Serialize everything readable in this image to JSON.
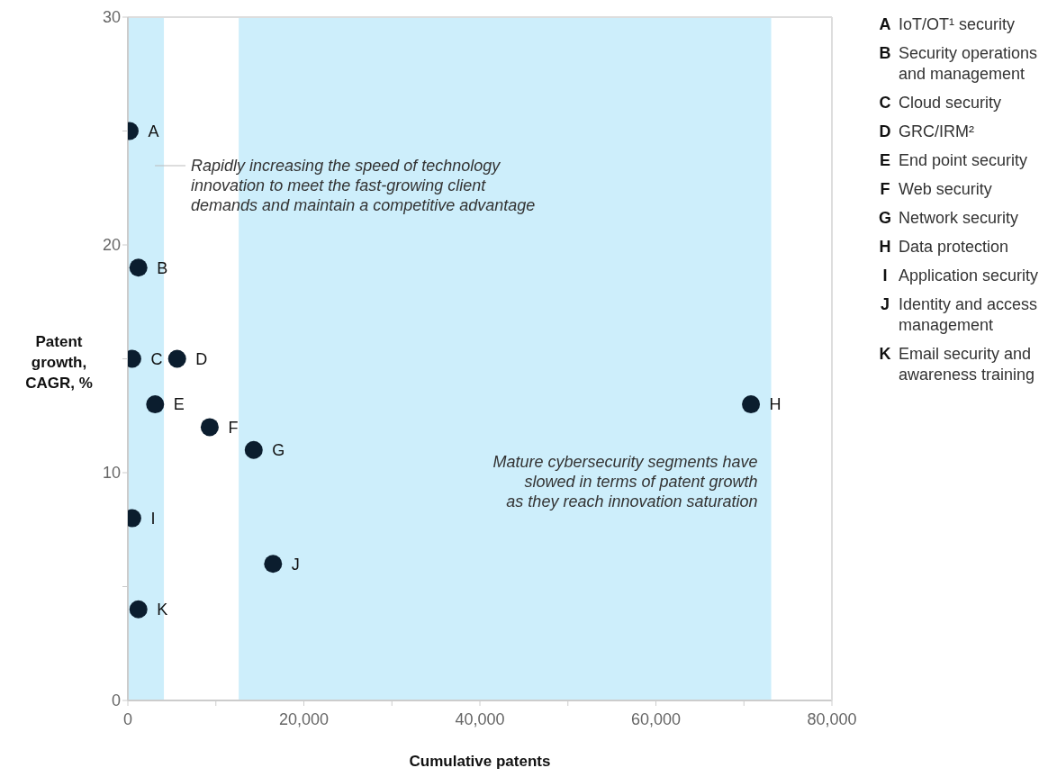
{
  "chart_data": {
    "type": "scatter",
    "xlabel": "Cumulative patents",
    "ylabel": "Patent growth, CAGR, %",
    "xlim": [
      0,
      80000
    ],
    "xticks": [
      0,
      {
        "value": 10000,
        "label": null
      },
      {
        "value": 20000,
        "label": "20,000"
      },
      {
        "value": 30000,
        "label": null
      },
      {
        "value": 40000,
        "label": "40,000"
      },
      {
        "value": 50000,
        "label": null
      },
      {
        "value": 60000,
        "label": "60,000"
      },
      {
        "value": 70000,
        "label": null
      },
      {
        "value": 80000,
        "label": "80,000"
      }
    ],
    "ylim": [
      0,
      30
    ],
    "yticks": [
      0,
      {
        "value": 5,
        "label": null
      },
      10,
      {
        "value": 15,
        "label": null
      },
      20,
      {
        "value": 25,
        "label": null
      },
      30
    ],
    "marker": "circle",
    "series": [
      {
        "name": "A",
        "color": "#0b1d2e",
        "x": [
          200
        ],
        "values": [
          25
        ]
      },
      {
        "name": "B",
        "color": "#0b1d2e",
        "x": [
          1200
        ],
        "values": [
          19
        ]
      },
      {
        "name": "C",
        "color": "#0b1d2e",
        "x": [
          500
        ],
        "values": [
          15
        ]
      },
      {
        "name": "D",
        "color": "#0b1d2e",
        "x": [
          5600
        ],
        "values": [
          15
        ]
      },
      {
        "name": "E",
        "color": "#0b1d2e",
        "x": [
          3100
        ],
        "values": [
          13
        ]
      },
      {
        "name": "F",
        "color": "#0b1d2e",
        "x": [
          9300
        ],
        "values": [
          12
        ]
      },
      {
        "name": "G",
        "color": "#0b1d2e",
        "x": [
          14300
        ],
        "values": [
          11
        ]
      },
      {
        "name": "H",
        "color": "#0b1d2e",
        "x": [
          70800
        ],
        "values": [
          13
        ]
      },
      {
        "name": "I",
        "color": "#0b1d2e",
        "x": [
          500
        ],
        "values": [
          8
        ]
      },
      {
        "name": "J",
        "color": "#0b1d2e",
        "x": [
          16500
        ],
        "values": [
          6
        ]
      },
      {
        "name": "K",
        "color": "#0b1d2e",
        "x": [
          1200
        ],
        "values": [
          4
        ]
      }
    ],
    "bands": [
      {
        "axis": "x",
        "from": 0,
        "to": 4100,
        "color": "#cdeefb",
        "label": "Rapidly increasing the speed of technology\ninnovation to meet the fast-growing client\ndemands and maintain a competitive advantage"
      },
      {
        "axis": "x",
        "from": 12600,
        "to": 73100,
        "color": "#cdeefb",
        "label": "Mature cybersecurity segments have\nslowed in terms of patent growth\nas they reach innovation saturation"
      }
    ],
    "annotations": [
      "A IoT/OT¹ security",
      "B Security operations and management",
      "C Cloud security",
      "D GRC/IRM²",
      "E End point security",
      "F Web security",
      "G Network security",
      "H Data protection",
      "I Application security",
      "J Identity and access management",
      "K Email security and awareness training"
    ]
  }
}
